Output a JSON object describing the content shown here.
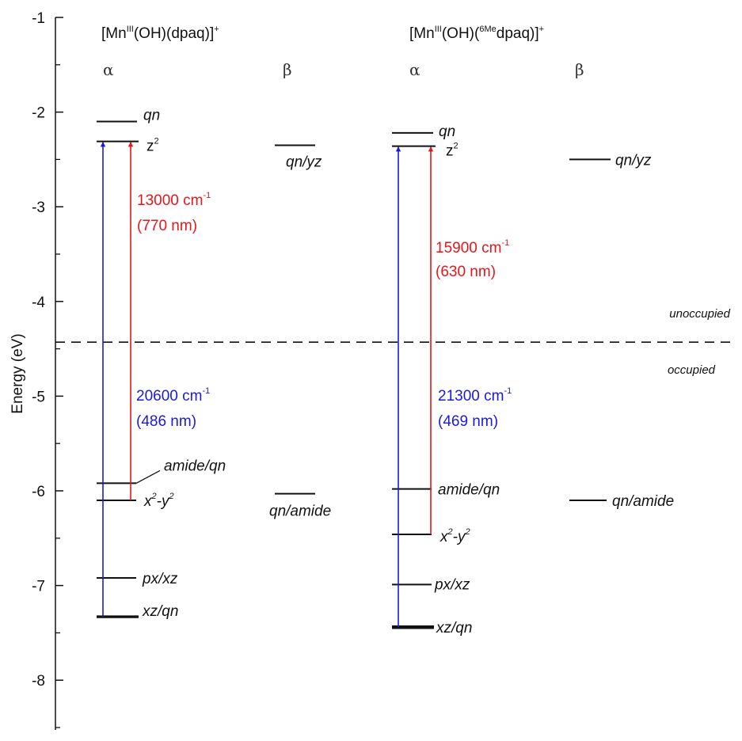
{
  "chart_data": {
    "type": "energy-level-diagram",
    "ylabel": "Energy (eV)",
    "ylim": [
      -8.5,
      -1
    ],
    "yticks": [
      -1,
      -2,
      -3,
      -4,
      -5,
      -6,
      -7,
      -8
    ],
    "homo_lumo_divider": -4.43,
    "region_labels": {
      "above": "unoccupied",
      "below": "occupied"
    },
    "spin_labels": {
      "alpha": "α",
      "beta": "β"
    },
    "complexes": [
      {
        "title": {
          "prefix": "[Mn",
          "ox_sup": "III",
          "mid": "(OH)(",
          "ligand_sup": "",
          "ligand": "dpaq)]",
          "charge_sup": "+"
        },
        "levels": [
          {
            "spin": "alpha",
            "label_main": "qn",
            "label_sup": "",
            "label_tail": "",
            "italic": true,
            "energy": -2.1
          },
          {
            "spin": "alpha",
            "label_main": "z",
            "label_sup": "2",
            "label_tail": "",
            "italic": false,
            "energy": -2.31
          },
          {
            "spin": "alpha",
            "label_main": "amide/qn",
            "label_sup": "",
            "label_tail": "",
            "italic": true,
            "energy": -5.92
          },
          {
            "spin": "alpha",
            "label_main": "x",
            "label_sup": "2",
            "label_tail": "-y",
            "label_tail_sup": "2",
            "italic": true,
            "energy": -6.1
          },
          {
            "spin": "alpha",
            "label_main": "px/xz",
            "label_sup": "",
            "label_tail": "",
            "italic": true,
            "energy": -6.92
          },
          {
            "spin": "alpha",
            "label_main": "xz/qn",
            "label_sup": "",
            "label_tail": "",
            "italic": true,
            "energy": -7.33
          },
          {
            "spin": "beta",
            "label_main": "qn/yz",
            "label_sup": "",
            "label_tail": "",
            "italic": true,
            "energy": -2.35
          },
          {
            "spin": "beta",
            "label_main": "qn/amide",
            "label_sup": "",
            "label_tail": "",
            "italic": true,
            "energy": -6.03
          }
        ],
        "transitions": [
          {
            "color": "#e8161b",
            "from": -6.1,
            "to": -2.31,
            "wavenumber": "13000 cm",
            "unit_sup": "-1",
            "wavelength": "(770 nm)"
          },
          {
            "color": "#1a1adf",
            "from": -7.33,
            "to": -2.31,
            "wavenumber": "20600 cm",
            "unit_sup": "-1",
            "wavelength": "(486 nm)"
          }
        ]
      },
      {
        "title": {
          "prefix": "[Mn",
          "ox_sup": "III",
          "mid": "(OH)(",
          "ligand_sup": "6Me",
          "ligand": "dpaq)]",
          "charge_sup": "+"
        },
        "levels": [
          {
            "spin": "alpha",
            "label_main": "qn",
            "label_sup": "",
            "label_tail": "",
            "italic": true,
            "energy": -2.22
          },
          {
            "spin": "alpha",
            "label_main": "z",
            "label_sup": "2",
            "label_tail": "",
            "italic": false,
            "energy": -2.36
          },
          {
            "spin": "alpha",
            "label_main": "amide/qn",
            "label_sup": "",
            "label_tail": "",
            "italic": true,
            "energy": -5.98
          },
          {
            "spin": "alpha",
            "label_main": "x",
            "label_sup": "2",
            "label_tail": "-y",
            "label_tail_sup": "2",
            "italic": true,
            "energy": -6.46
          },
          {
            "spin": "alpha",
            "label_main": "px/xz",
            "label_sup": "",
            "label_tail": "",
            "italic": true,
            "energy": -6.99
          },
          {
            "spin": "alpha",
            "label_main": "xz/qn",
            "label_sup": "",
            "label_tail": "",
            "italic": true,
            "energy": -7.44
          },
          {
            "spin": "beta",
            "label_main": "qn/yz",
            "label_sup": "",
            "label_tail": "",
            "italic": true,
            "energy": -2.5
          },
          {
            "spin": "beta",
            "label_main": "qn/amide",
            "label_sup": "",
            "label_tail": "",
            "italic": true,
            "energy": -6.1
          }
        ],
        "transitions": [
          {
            "color": "#e8161b",
            "from": -6.46,
            "to": -2.36,
            "wavenumber": "15900 cm",
            "unit_sup": "-1",
            "wavelength": "(630 nm)"
          },
          {
            "color": "#1a1adf",
            "from": -7.44,
            "to": -2.36,
            "wavenumber": "21300 cm",
            "unit_sup": "-1",
            "wavelength": "(469 nm)"
          }
        ]
      }
    ]
  }
}
